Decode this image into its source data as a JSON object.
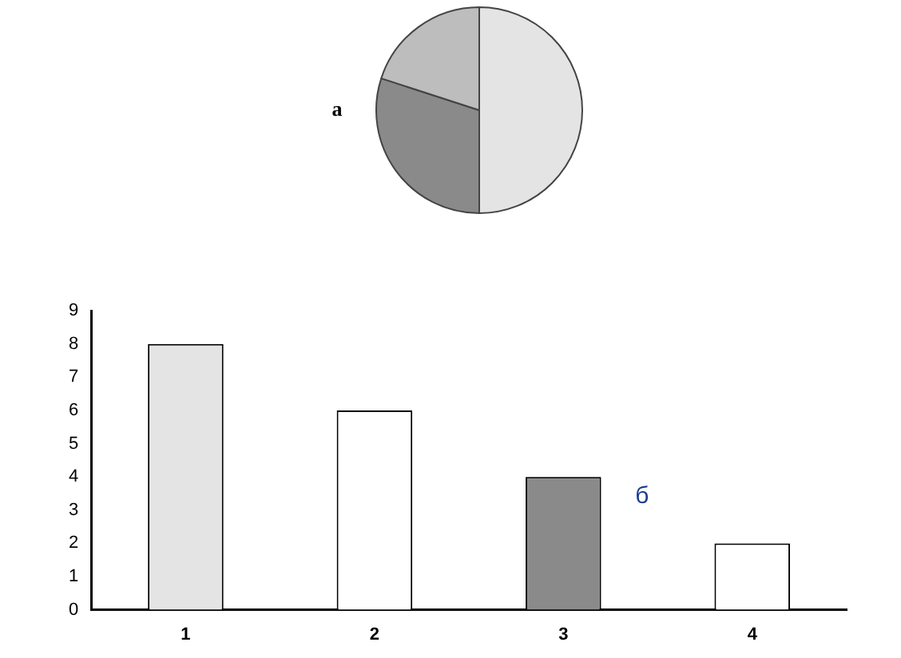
{
  "chart_data": [
    {
      "type": "pie",
      "categories": [
        null,
        null,
        null
      ],
      "values": [
        50,
        30,
        20
      ],
      "colors": [
        "#e4e4e4",
        "#8a8a8a",
        "#bdbdbd"
      ],
      "annotations": [
        "а"
      ]
    },
    {
      "type": "bar",
      "categories": [
        "1",
        "2",
        "3",
        "4"
      ],
      "values": [
        8,
        6,
        4,
        2
      ],
      "colors": [
        "#e4e4e4",
        "#ffffff",
        "#8a8a8a",
        "#ffffff"
      ],
      "ylim": [
        0,
        9
      ],
      "yticks": [
        0,
        1,
        2,
        3,
        4,
        5,
        6,
        7,
        8,
        9
      ],
      "grid": false,
      "legend": false,
      "annotations": [
        "б"
      ]
    }
  ]
}
